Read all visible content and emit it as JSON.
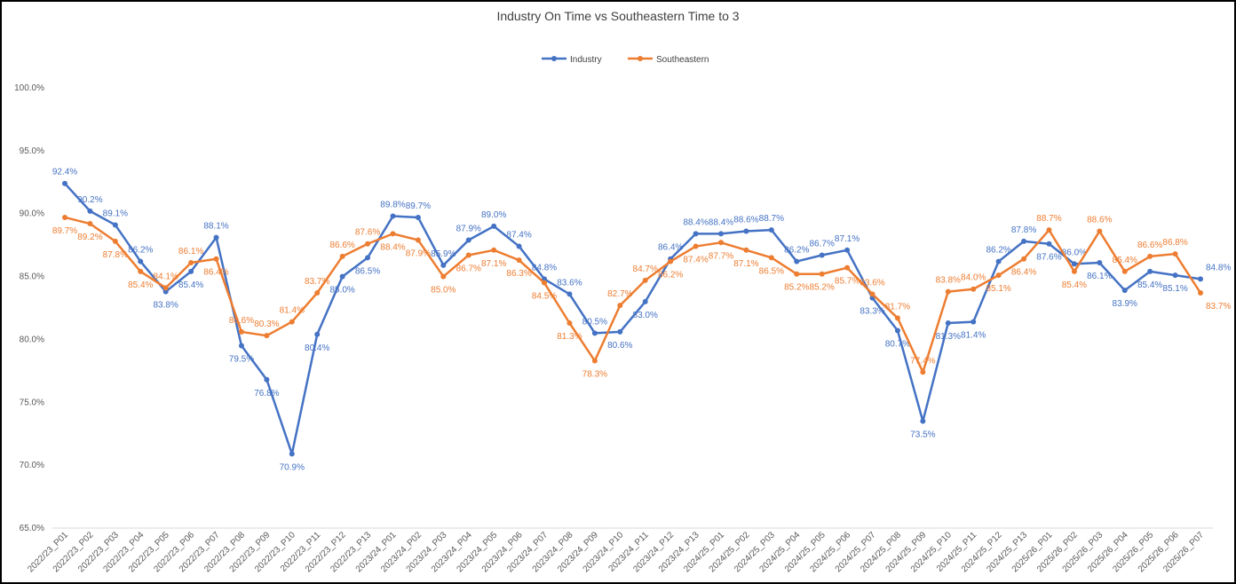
{
  "chart_data": {
    "type": "line",
    "title": "Industry On Time vs Southeastern Time to 3",
    "xlabel": "",
    "ylabel": "",
    "ylim": [
      65,
      100
    ],
    "yticks": [
      "65.0%",
      "70.0%",
      "75.0%",
      "80.0%",
      "85.0%",
      "90.0%",
      "95.0%",
      "100.0%"
    ],
    "grid": false,
    "legend_position": "top-center",
    "categories": [
      "2022/23_P01",
      "2022/23_P02",
      "2022/23_P03",
      "2022/23_P04",
      "2022/23_P05",
      "2022/23_P06",
      "2022/23_P07",
      "2022/23_P08",
      "2022/23_P09",
      "2022/23_P10",
      "2022/23_P11",
      "2022/23_P12",
      "2022/23_P13",
      "2023/24_P01",
      "2023/24_P02",
      "2023/24_P03",
      "2023/24_P04",
      "2023/24_P05",
      "2023/24_P06",
      "2023/24_P07",
      "2023/24_P08",
      "2023/24_P09",
      "2023/24_P10",
      "2023/24_P11",
      "2023/24_P12",
      "2023/24_P13",
      "2024/25_P01",
      "2024/25_P02",
      "2024/25_P03",
      "2024/25_P04",
      "2024/25_P05",
      "2024/25_P06",
      "2024/25_P07",
      "2024/25_P08",
      "2024/25_P09",
      "2024/25_P10",
      "2024/25_P11",
      "2024/25_P12",
      "2024/25_P13",
      "2025/26_P01",
      "2025/26_P02",
      "2025/26_P03",
      "2025/26_P04",
      "2025/26_P05",
      "2025/26_P06",
      "2025/26_P07"
    ],
    "series": [
      {
        "name": "Industry",
        "color": "#4472C4",
        "values": [
          92.4,
          90.2,
          89.1,
          86.2,
          83.8,
          85.4,
          88.1,
          79.5,
          76.8,
          70.9,
          80.4,
          85.0,
          86.5,
          89.8,
          89.7,
          85.9,
          87.9,
          89.0,
          87.4,
          84.8,
          83.6,
          80.5,
          80.6,
          83.0,
          86.4,
          88.4,
          88.4,
          88.6,
          88.7,
          86.2,
          86.7,
          87.1,
          83.3,
          80.7,
          73.5,
          81.3,
          81.4,
          86.2,
          87.8,
          87.6,
          86.0,
          86.1,
          83.9,
          85.4,
          85.1,
          84.8
        ]
      },
      {
        "name": "Southeastern",
        "color": "#ED7D31",
        "values": [
          89.7,
          89.2,
          87.8,
          85.4,
          84.1,
          86.1,
          86.4,
          80.6,
          80.3,
          81.4,
          83.7,
          86.6,
          87.6,
          88.4,
          87.9,
          85.0,
          86.7,
          87.1,
          86.3,
          84.5,
          81.3,
          78.3,
          82.7,
          84.7,
          86.2,
          87.4,
          87.7,
          87.1,
          86.5,
          85.2,
          85.2,
          85.7,
          83.6,
          81.7,
          77.4,
          83.8,
          84.0,
          85.1,
          86.4,
          88.7,
          85.4,
          88.6,
          85.4,
          86.6,
          86.8,
          83.7
        ]
      }
    ]
  }
}
